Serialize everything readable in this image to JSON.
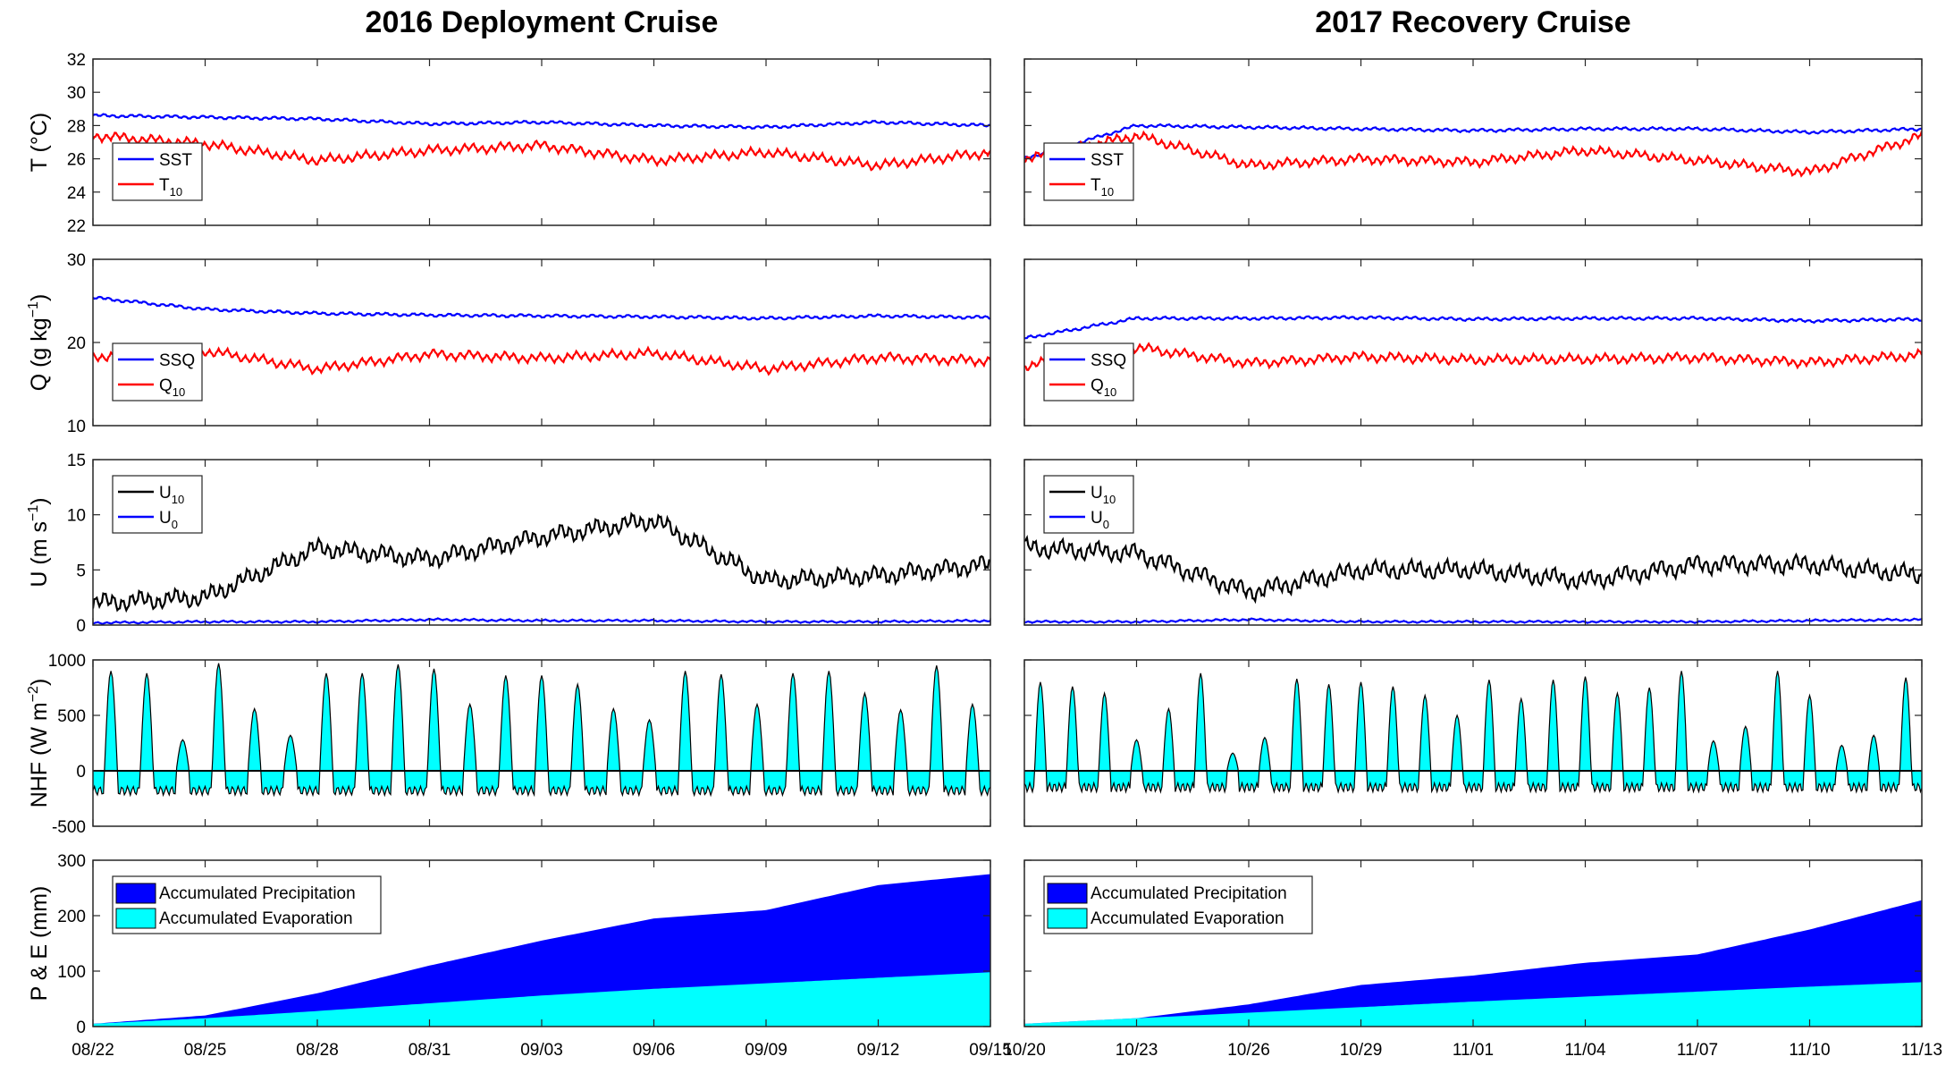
{
  "columns": [
    {
      "title": "2016 Deployment Cruise",
      "x_ticks": [
        "08/22",
        "08/25",
        "08/28",
        "08/31",
        "09/03",
        "09/06",
        "09/09",
        "09/12",
        "09/15"
      ]
    },
    {
      "title": "2017 Recovery Cruise",
      "x_ticks": [
        "10/20",
        "10/23",
        "10/26",
        "10/29",
        "11/01",
        "11/04",
        "11/07",
        "11/10",
        "11/13"
      ]
    }
  ],
  "rows": [
    {
      "ylabel": "T (°C)",
      "yticks": [
        "22",
        "24",
        "26",
        "28",
        "30",
        "32"
      ],
      "legend": [
        {
          "main": "SST",
          "sub": "",
          "color": "#0000ff"
        },
        {
          "main": "T",
          "sub": "10",
          "color": "#ff0000"
        }
      ]
    },
    {
      "ylabel": "Q (g kg",
      "ylabel_sup": "−1",
      "ylabel_end": ")",
      "yticks": [
        "10",
        "20",
        "30"
      ],
      "legend": [
        {
          "main": "SSQ",
          "sub": "",
          "color": "#0000ff"
        },
        {
          "main": "Q",
          "sub": "10",
          "color": "#ff0000"
        }
      ]
    },
    {
      "ylabel": "U (m s",
      "ylabel_sup": "−1",
      "ylabel_end": ")",
      "yticks": [
        "0",
        "5",
        "10",
        "15"
      ],
      "legend": [
        {
          "main": "U",
          "sub": "10",
          "color": "#000000"
        },
        {
          "main": "U",
          "sub": "0",
          "color": "#0000ff"
        }
      ]
    },
    {
      "ylabel": "NHF (W m",
      "ylabel_sup": "−2",
      "ylabel_end": ")",
      "yticks": [
        "-500",
        "0",
        "500",
        "1000"
      ],
      "legend": []
    },
    {
      "ylabel": "P & E (mm)",
      "yticks": [
        "0",
        "100",
        "200",
        "300"
      ],
      "legend": [
        {
          "main": "Accumulated Precipitation",
          "sub": "",
          "color": "#0000ff"
        },
        {
          "main": "Accumulated Evaporation",
          "sub": "",
          "color": "#00ffff"
        }
      ]
    }
  ],
  "chart_data": [
    {
      "type": "line",
      "panel": "2016-temperature",
      "x": [
        "08/22",
        "08/25",
        "08/28",
        "08/31",
        "09/03",
        "09/06",
        "09/09",
        "09/12",
        "09/15"
      ],
      "ylim": [
        22,
        32
      ],
      "series": [
        {
          "name": "SST",
          "color": "#0000ff",
          "values": [
            28.6,
            28.5,
            28.4,
            28.1,
            28.2,
            28.0,
            27.9,
            28.2,
            28.0
          ]
        },
        {
          "name": "T10",
          "color": "#ff0000",
          "values": [
            27.4,
            26.9,
            25.9,
            26.5,
            26.8,
            25.9,
            26.4,
            25.6,
            26.4
          ]
        }
      ]
    },
    {
      "type": "line",
      "panel": "2016-humidity",
      "x": [
        "08/22",
        "08/25",
        "08/28",
        "08/31",
        "09/03",
        "09/06",
        "09/09",
        "09/12",
        "09/15"
      ],
      "ylim": [
        10,
        30
      ],
      "series": [
        {
          "name": "SSQ",
          "color": "#0000ff",
          "values": [
            25.4,
            24.0,
            23.5,
            23.3,
            23.2,
            23.1,
            22.9,
            23.2,
            23.0
          ]
        },
        {
          "name": "Q10",
          "color": "#ff0000",
          "values": [
            18.3,
            19.0,
            16.8,
            18.6,
            18.1,
            18.7,
            16.8,
            18.2,
            17.8
          ]
        }
      ]
    },
    {
      "type": "line",
      "panel": "2016-wind",
      "x": [
        "08/22",
        "08/25",
        "08/28",
        "08/31",
        "09/03",
        "09/06",
        "09/09",
        "09/12",
        "09/15"
      ],
      "ylim": [
        0,
        15
      ],
      "series": [
        {
          "name": "U10",
          "color": "#000000",
          "values": [
            2.0,
            2.5,
            7.0,
            6.0,
            8.0,
            9.5,
            4.0,
            4.5,
            5.5
          ]
        },
        {
          "name": "U0",
          "color": "#0000ff",
          "values": [
            0.2,
            0.3,
            0.3,
            0.5,
            0.4,
            0.4,
            0.3,
            0.3,
            0.4
          ]
        }
      ]
    },
    {
      "type": "area",
      "panel": "2016-net-heat-flux",
      "x_range": [
        "08/22",
        "09/15"
      ],
      "ylim": [
        -500,
        1000
      ],
      "series": [
        {
          "name": "NHF",
          "color": "#00ffff",
          "daily_peaks": [
            900,
            880,
            280,
            970,
            560,
            320,
            880,
            880,
            960,
            920,
            600,
            860,
            860,
            780,
            560,
            460,
            900,
            870,
            600,
            880,
            900,
            700,
            550,
            950,
            600
          ],
          "nighttime_level": -180
        }
      ]
    },
    {
      "type": "area",
      "panel": "2016-precip-evap",
      "x": [
        "08/22",
        "08/25",
        "08/28",
        "08/31",
        "09/03",
        "09/06",
        "09/09",
        "09/12",
        "09/15"
      ],
      "ylim": [
        0,
        300
      ],
      "series": [
        {
          "name": "Accumulated Precipitation",
          "color": "#0000ff",
          "values": [
            5,
            20,
            60,
            110,
            155,
            195,
            210,
            255,
            275
          ]
        },
        {
          "name": "Accumulated Evaporation",
          "color": "#00ffff",
          "values": [
            5,
            15,
            28,
            42,
            56,
            68,
            78,
            88,
            98
          ]
        }
      ]
    },
    {
      "type": "line",
      "panel": "2017-temperature",
      "x": [
        "10/20",
        "10/23",
        "10/26",
        "10/29",
        "11/01",
        "11/04",
        "11/07",
        "11/10",
        "11/13"
      ],
      "ylim": [
        22,
        32
      ],
      "series": [
        {
          "name": "SST",
          "color": "#0000ff",
          "values": [
            26.0,
            28.0,
            27.9,
            27.8,
            27.7,
            27.8,
            27.8,
            27.6,
            27.8
          ]
        },
        {
          "name": "T10",
          "color": "#ff0000",
          "values": [
            26.0,
            27.4,
            25.6,
            26.0,
            25.8,
            26.5,
            25.9,
            25.2,
            27.4
          ]
        }
      ]
    },
    {
      "type": "line",
      "panel": "2017-humidity",
      "x": [
        "10/20",
        "10/23",
        "10/26",
        "10/29",
        "11/01",
        "11/04",
        "11/07",
        "11/10",
        "11/13"
      ],
      "ylim": [
        10,
        30
      ],
      "series": [
        {
          "name": "SSQ",
          "color": "#0000ff",
          "values": [
            20.5,
            22.9,
            22.9,
            23.0,
            22.8,
            22.9,
            22.9,
            22.6,
            22.8
          ]
        },
        {
          "name": "Q10",
          "color": "#ff0000",
          "values": [
            17.2,
            19.4,
            17.5,
            18.3,
            17.9,
            18.0,
            18.2,
            17.6,
            18.5
          ]
        }
      ]
    },
    {
      "type": "line",
      "panel": "2017-wind",
      "x": [
        "10/20",
        "10/23",
        "10/26",
        "10/29",
        "11/01",
        "11/04",
        "11/07",
        "11/10",
        "11/13"
      ],
      "ylim": [
        0,
        15
      ],
      "series": [
        {
          "name": "U10",
          "color": "#000000",
          "values": [
            7.0,
            6.5,
            3.0,
            5.0,
            5.0,
            4.0,
            5.5,
            5.5,
            4.5
          ]
        },
        {
          "name": "U0",
          "color": "#0000ff",
          "values": [
            0.3,
            0.3,
            0.5,
            0.3,
            0.3,
            0.3,
            0.3,
            0.4,
            0.5
          ]
        }
      ]
    },
    {
      "type": "area",
      "panel": "2017-net-heat-flux",
      "x_range": [
        "10/20",
        "11/13"
      ],
      "ylim": [
        -500,
        1000
      ],
      "series": [
        {
          "name": "NHF",
          "color": "#00ffff",
          "daily_peaks": [
            800,
            760,
            700,
            280,
            560,
            880,
            160,
            300,
            830,
            780,
            800,
            760,
            680,
            500,
            820,
            650,
            820,
            850,
            700,
            750,
            900,
            270,
            400,
            900,
            680,
            230,
            320,
            840
          ],
          "nighttime_level": -150
        }
      ]
    },
    {
      "type": "area",
      "panel": "2017-precip-evap",
      "x": [
        "10/20",
        "10/23",
        "10/26",
        "10/29",
        "11/01",
        "11/04",
        "11/07",
        "11/10",
        "11/13"
      ],
      "ylim": [
        0,
        300
      ],
      "series": [
        {
          "name": "Accumulated Precipitation",
          "color": "#0000ff",
          "values": [
            5,
            15,
            40,
            75,
            92,
            115,
            130,
            175,
            228
          ]
        },
        {
          "name": "Accumulated Evaporation",
          "color": "#00ffff",
          "values": [
            5,
            15,
            25,
            35,
            45,
            54,
            63,
            72,
            80
          ]
        }
      ]
    }
  ]
}
